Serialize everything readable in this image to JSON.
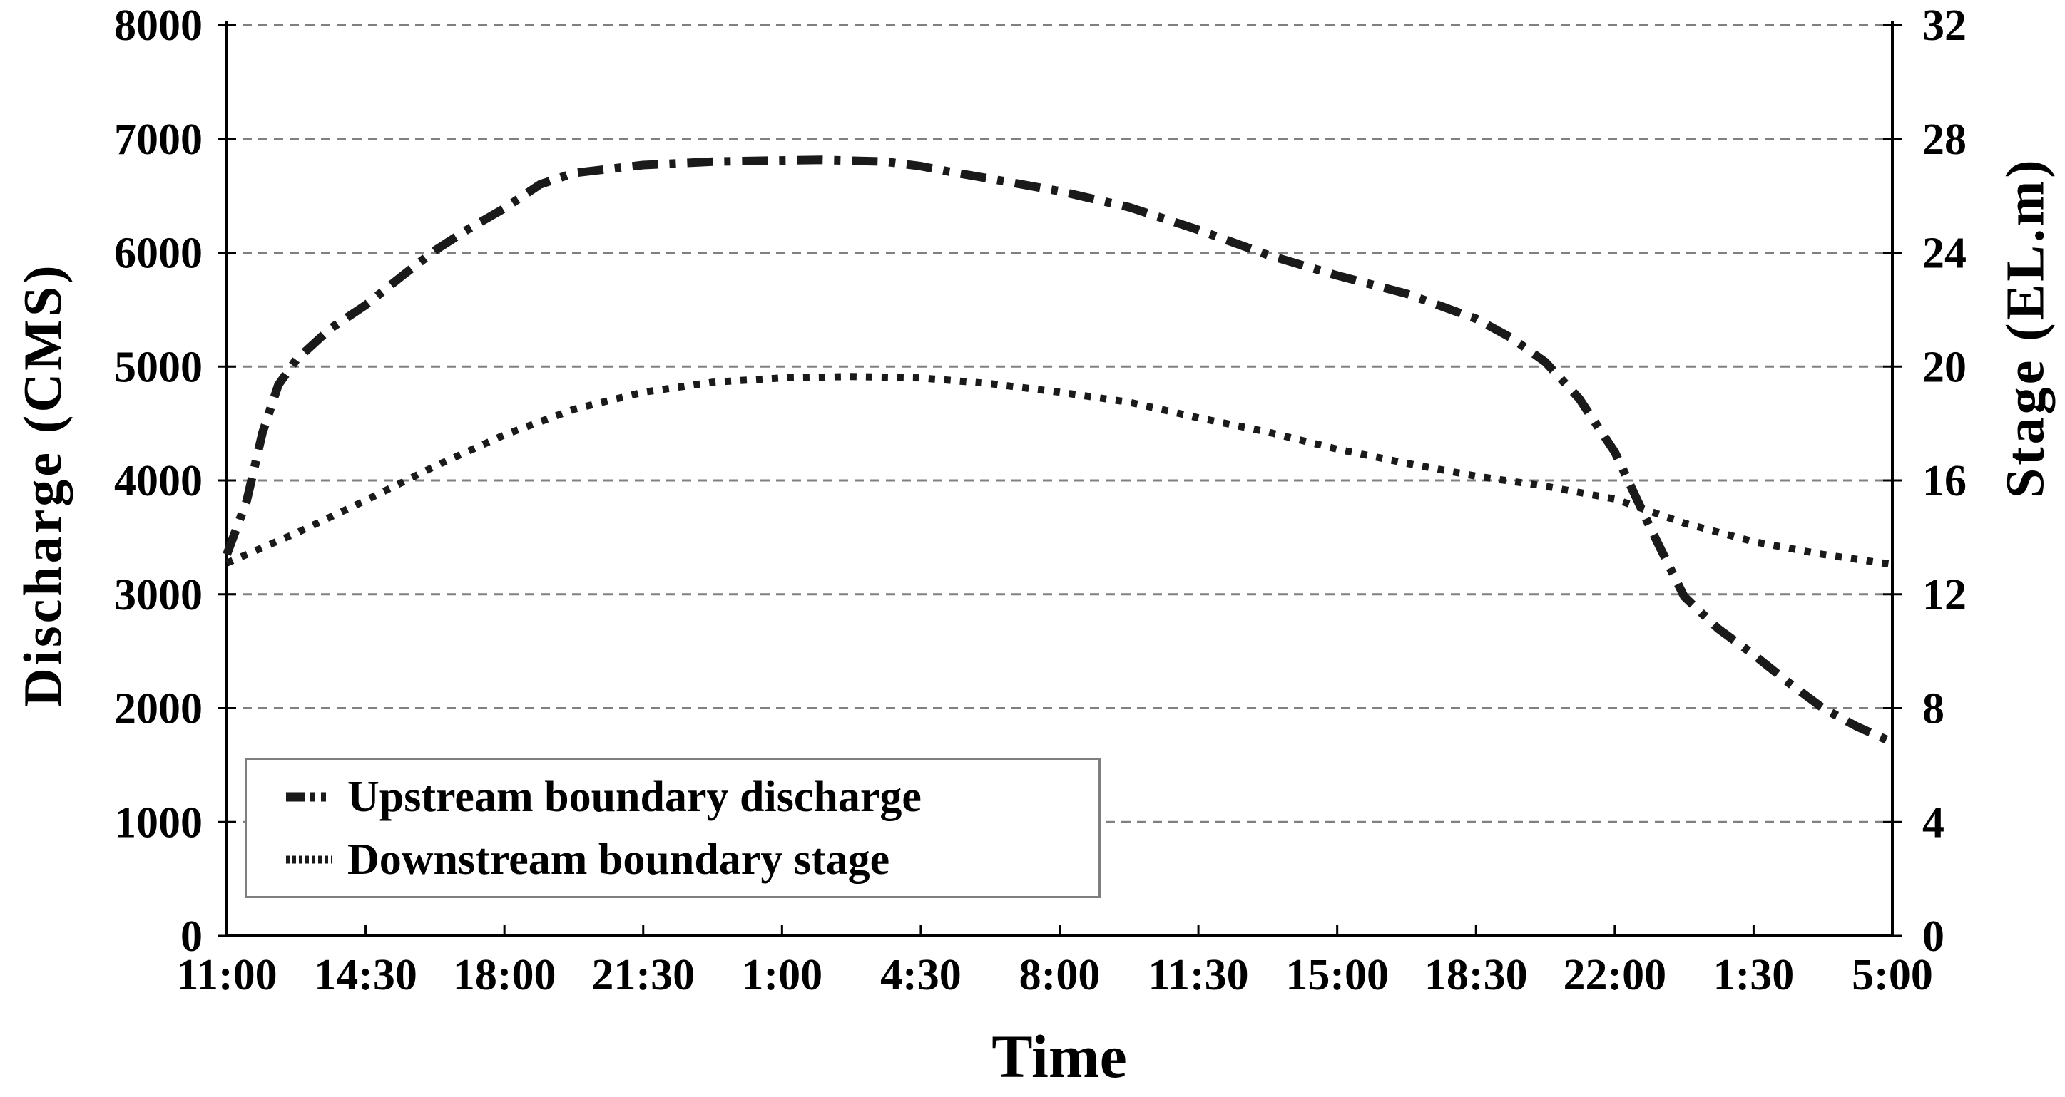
{
  "figure": {
    "background": "#ffffff",
    "axis_color": "#000000",
    "gridline_color": "#808080",
    "series_color": "#1a1a1a",
    "legend_border_color": "#7f7f7f"
  },
  "legend": {
    "items": [
      {
        "label": "Upstream boundary discharge",
        "style": "dash-dot"
      },
      {
        "label": "Downstream boundary stage",
        "style": "dotted"
      }
    ]
  },
  "chart_data": {
    "type": "line",
    "title": "",
    "xlabel": "Time",
    "ylabel_left": "Discharge (CMS)",
    "ylabel_right": "Stage (EL.m)",
    "x_axis": {
      "tick_labels": [
        "11:00",
        "14:30",
        "18:00",
        "21:30",
        "1:00",
        "4:30",
        "8:00",
        "11:30",
        "15:00",
        "18:30",
        "22:00",
        "1:30",
        "5:00"
      ],
      "hours_per_tick": 3.5,
      "total_hours": 42
    },
    "y_left": {
      "label": "Discharge (CMS)",
      "min": 0,
      "max": 8000,
      "tick_step": 1000,
      "tick_labels": [
        "0",
        "1000",
        "2000",
        "3000",
        "4000",
        "5000",
        "6000",
        "7000",
        "8000"
      ]
    },
    "y_right": {
      "label": "Stage (EL.m)",
      "min": 0,
      "max": 32,
      "tick_step": 4,
      "tick_labels": [
        "0",
        "4",
        "8",
        "12",
        "16",
        "20",
        "24",
        "28",
        "32"
      ]
    },
    "grid": {
      "horizontal": true,
      "vertical": false,
      "style": "dashed"
    },
    "legend_position": "inside lower-left",
    "series": [
      {
        "name": "Upstream boundary discharge",
        "axis": "left",
        "units": "CMS",
        "line_style": "dash-dot",
        "hours": [
          0,
          0.5,
          0.9,
          1.3,
          1.75,
          2.6,
          3.5,
          4.4,
          5.25,
          6.1,
          7,
          7.9,
          8.75,
          10.5,
          12.25,
          14,
          15,
          16.6,
          17.5,
          18.4,
          19.25,
          21,
          22.75,
          24.5,
          26.25,
          28,
          29.75,
          31.5,
          32.4,
          33.25,
          34.1,
          35,
          35.9,
          36.75,
          37.6,
          38.5,
          39.4,
          40.25,
          41.1,
          42
        ],
        "values": [
          3350,
          3820,
          4420,
          4840,
          5060,
          5330,
          5540,
          5790,
          6020,
          6210,
          6390,
          6600,
          6700,
          6770,
          6800,
          6810,
          6815,
          6800,
          6760,
          6700,
          6650,
          6540,
          6400,
          6200,
          5980,
          5800,
          5640,
          5420,
          5250,
          5040,
          4720,
          4250,
          3580,
          2980,
          2700,
          2470,
          2220,
          2000,
          1840,
          1700
        ]
      },
      {
        "name": "Downstream boundary stage",
        "axis": "right",
        "units": "EL.m",
        "line_style": "dotted",
        "hours": [
          0,
          1.75,
          3.5,
          5.25,
          7,
          8.75,
          10.5,
          12.25,
          14,
          15.75,
          17.5,
          19.25,
          21,
          22.75,
          24.5,
          26.25,
          28,
          29.75,
          31.5,
          33.25,
          35,
          36.75,
          38.5,
          40.25,
          42
        ],
        "values": [
          13.1,
          14.15,
          15.3,
          16.5,
          17.6,
          18.5,
          19.1,
          19.45,
          19.6,
          19.65,
          19.6,
          19.4,
          19.1,
          18.75,
          18.2,
          17.7,
          17.1,
          16.6,
          16.15,
          15.8,
          15.35,
          14.5,
          13.85,
          13.4,
          13.05
        ]
      }
    ]
  }
}
